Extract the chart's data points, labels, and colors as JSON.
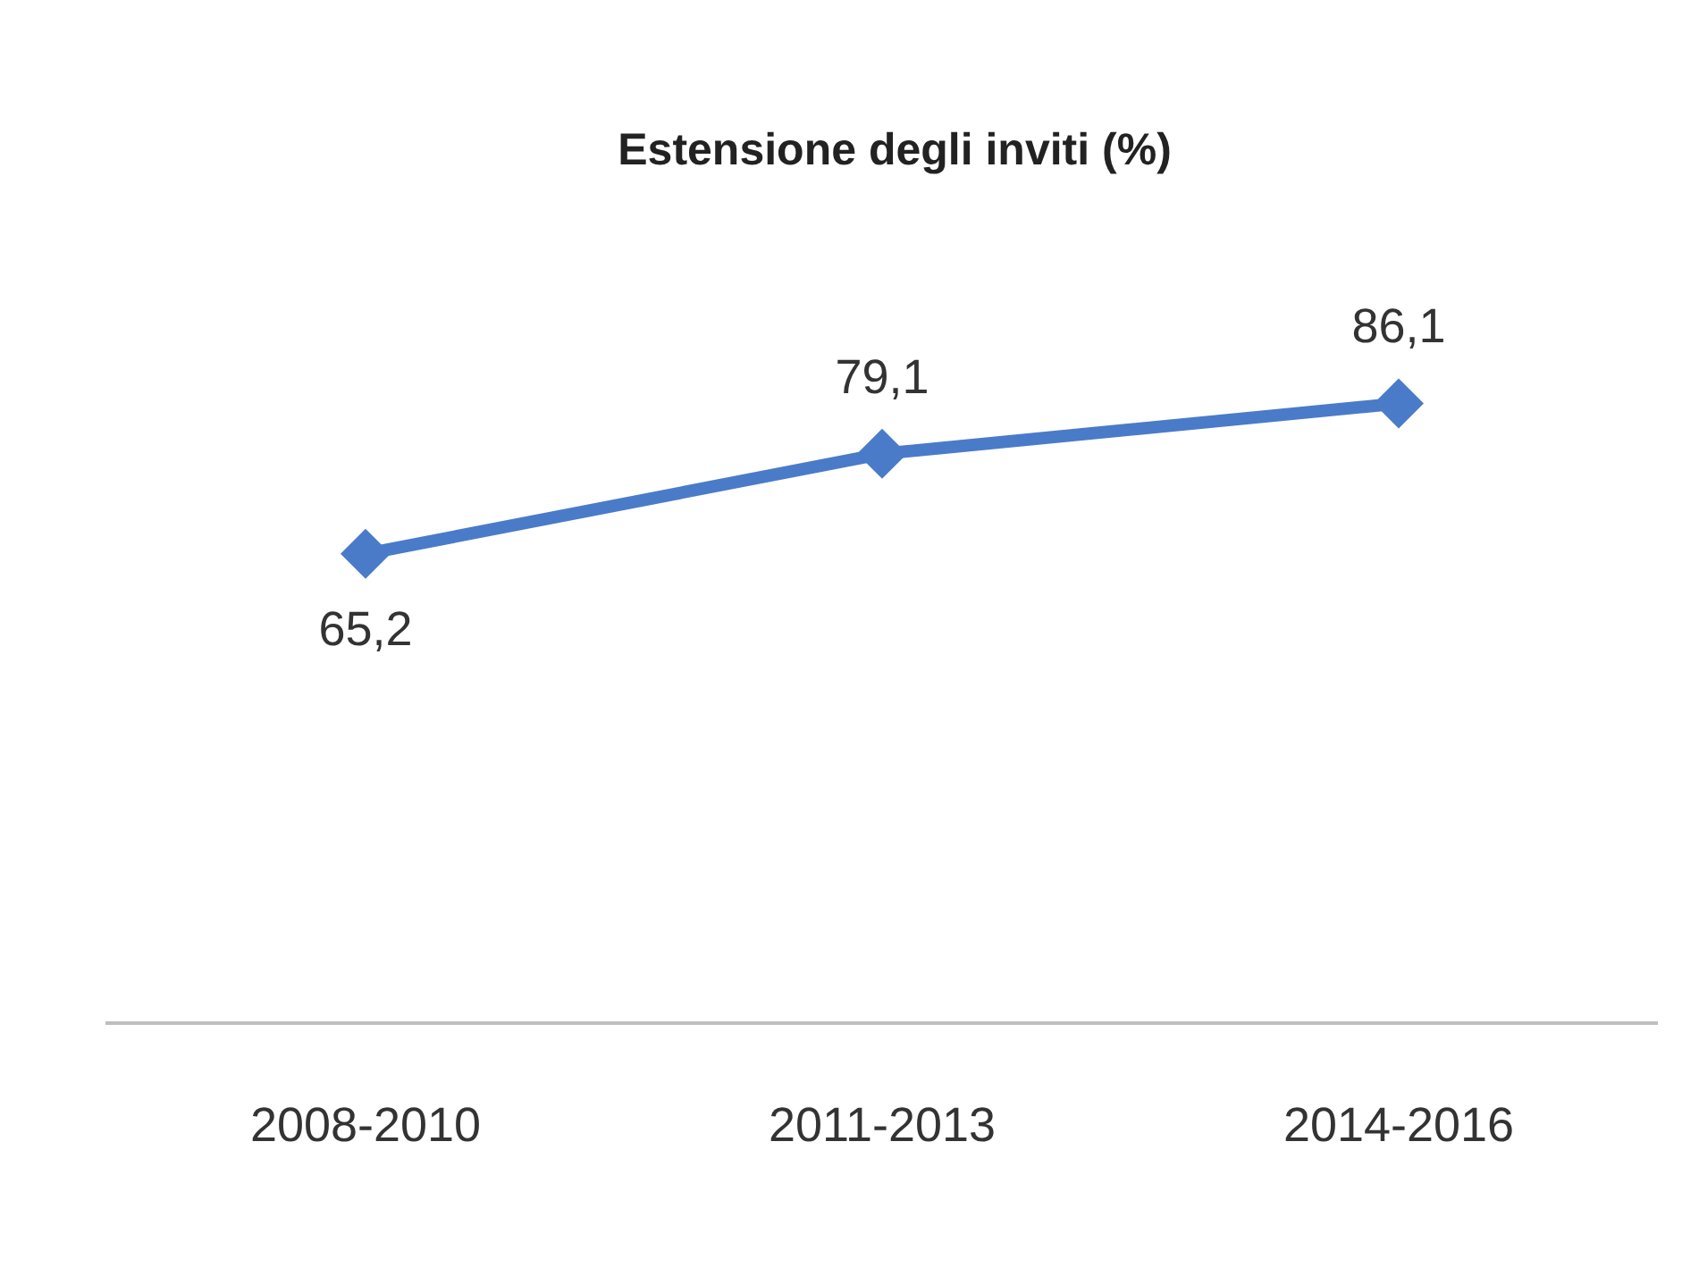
{
  "chart_data": {
    "type": "line",
    "title": "Estensione degli inviti (%)",
    "categories": [
      "2008-2010",
      "2011-2013",
      "2014-2016"
    ],
    "series": [
      {
        "color": "#4a7bc8",
        "values": [
          65.2,
          79.1,
          86.1
        ],
        "value_labels": [
          "65,2",
          "79,1",
          "86,1"
        ]
      }
    ],
    "tick_labels": "x",
    "marker": "diamond",
    "line_style": "solid",
    "grid": false,
    "legend": false
  }
}
